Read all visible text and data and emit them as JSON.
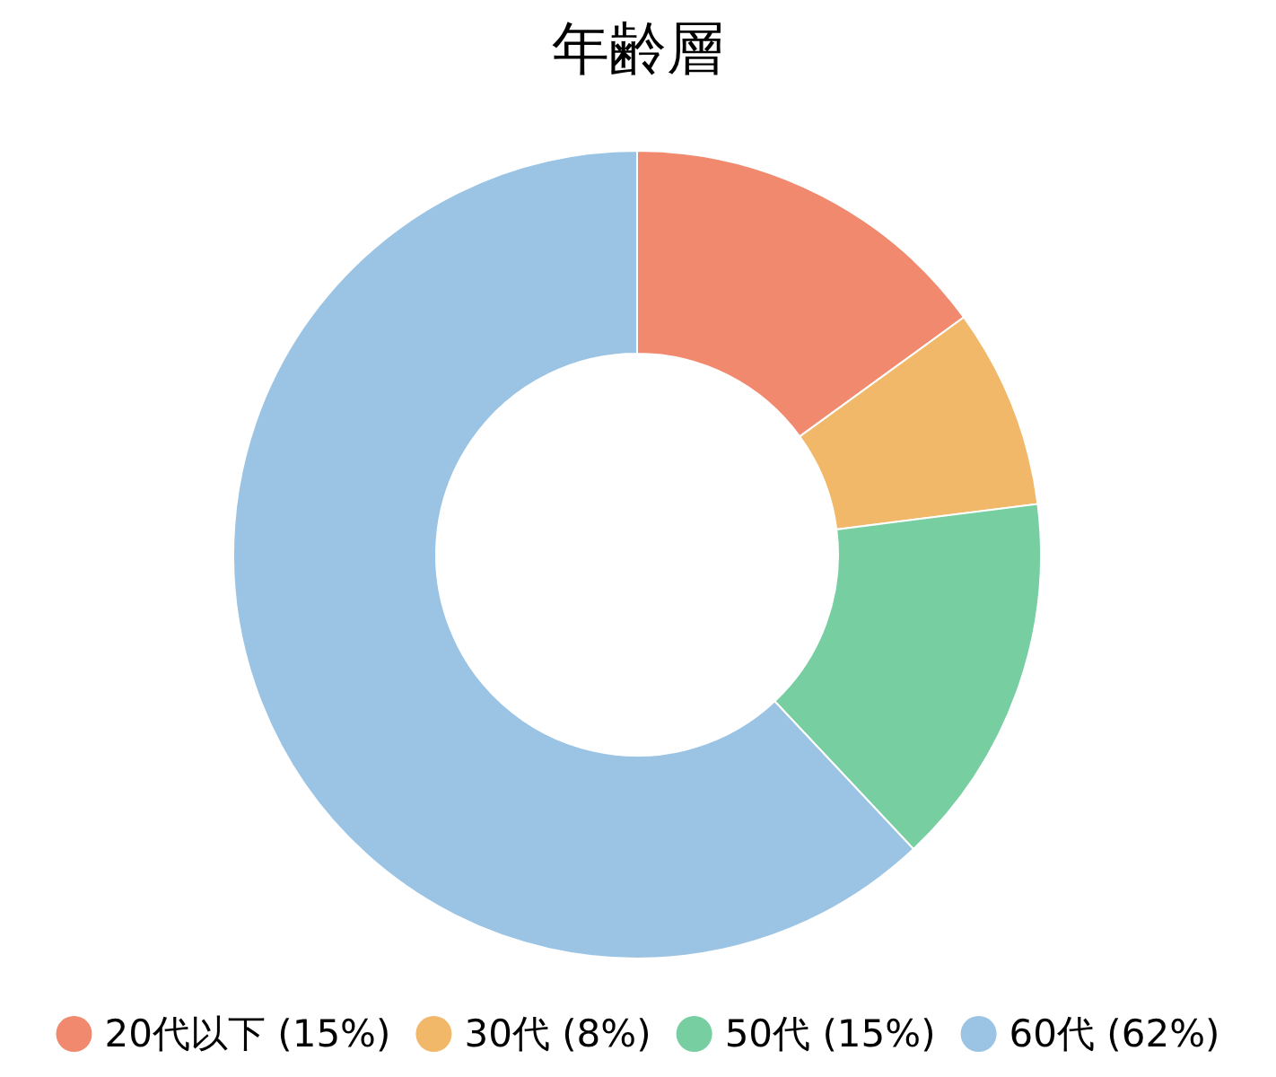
{
  "chart_data": {
    "type": "donut",
    "title": "年齢層",
    "categories": [
      "20代以下 (15%)",
      "30代 (8%)",
      "50代 (15%)",
      "60代 (62%)"
    ],
    "values": [
      15,
      8,
      15,
      62
    ],
    "colors": [
      "#f0896e",
      "#f2b86a",
      "#77cea0",
      "#9bc4e4"
    ],
    "legend": "bottom"
  }
}
